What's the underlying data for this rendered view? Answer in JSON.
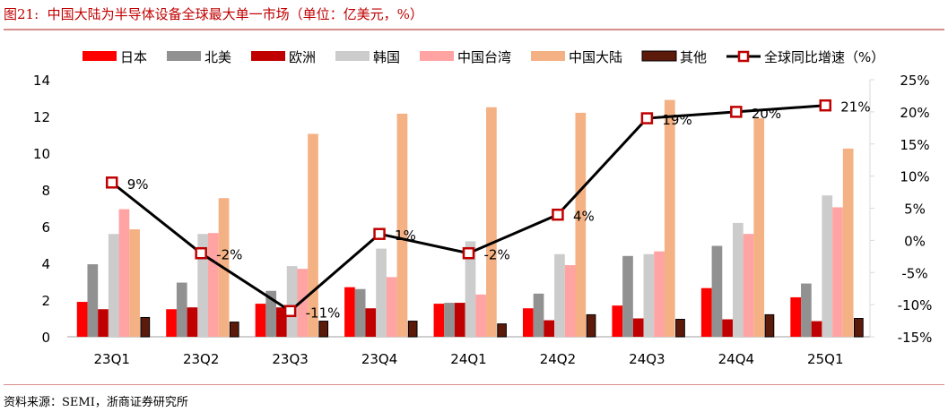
{
  "header": {
    "title": "图21:  中国大陆为半导体设备全球最大单一市场（单位：亿美元，%）"
  },
  "footer": {
    "source": "资料来源：SEMI，浙商证券研究所"
  },
  "chart_data": {
    "type": "bar",
    "title": "中国大陆为半导体设备全球最大单一市场（单位：亿美元，%）",
    "categories": [
      "23Q1",
      "23Q2",
      "23Q3",
      "23Q4",
      "24Q1",
      "24Q2",
      "24Q3",
      "24Q4",
      "25Q1"
    ],
    "series": [
      {
        "name": "日本",
        "color": "#ff0000",
        "values": [
          1.9,
          1.5,
          1.8,
          2.7,
          1.8,
          1.55,
          1.7,
          2.65,
          2.15
        ]
      },
      {
        "name": "北美",
        "color": "#919191",
        "values": [
          3.95,
          2.95,
          2.5,
          2.6,
          1.85,
          2.35,
          4.4,
          4.95,
          2.9
        ]
      },
      {
        "name": "欧洲",
        "color": "#c00000",
        "values": [
          1.5,
          1.6,
          1.6,
          1.55,
          1.85,
          0.9,
          1.0,
          0.95,
          0.85
        ]
      },
      {
        "name": "韩国",
        "color": "#cccccc",
        "values": [
          5.6,
          5.6,
          3.85,
          4.8,
          5.2,
          4.5,
          4.5,
          6.2,
          7.7
        ]
      },
      {
        "name": "中国台湾",
        "color": "#ffa3a3",
        "values": [
          6.95,
          5.65,
          3.7,
          3.25,
          2.3,
          3.9,
          4.65,
          5.6,
          7.05
        ]
      },
      {
        "name": "中国大陆",
        "color": "#f4b183",
        "values": [
          5.85,
          7.55,
          11.05,
          12.15,
          12.5,
          12.2,
          12.9,
          11.9,
          10.25
        ]
      },
      {
        "name": "其他",
        "color": "#5c1a0b",
        "values": [
          1.05,
          0.8,
          0.85,
          0.85,
          0.7,
          1.2,
          0.95,
          1.2,
          1.0
        ]
      }
    ],
    "line_series": {
      "name": "全球同比增速（%）",
      "color": "#000000",
      "marker_color": "#c00000",
      "axis": "right",
      "values": [
        9,
        -2,
        -11,
        1,
        -2,
        4,
        19,
        20,
        21
      ],
      "labels": [
        "9%",
        "-2%",
        "-11%",
        "1%",
        "-2%",
        "4%",
        "19%",
        "20%",
        "21%"
      ]
    },
    "y_left": {
      "min": 0,
      "max": 14,
      "ticks": [
        "0",
        "2",
        "4",
        "6",
        "8",
        "10",
        "12",
        "14"
      ]
    },
    "y_right": {
      "min": -15,
      "max": 25,
      "ticks": [
        "-15%",
        "-10%",
        "-5%",
        "0%",
        "5%",
        "10%",
        "15%",
        "20%",
        "25%"
      ]
    },
    "legend_position": "top",
    "grid": false
  }
}
